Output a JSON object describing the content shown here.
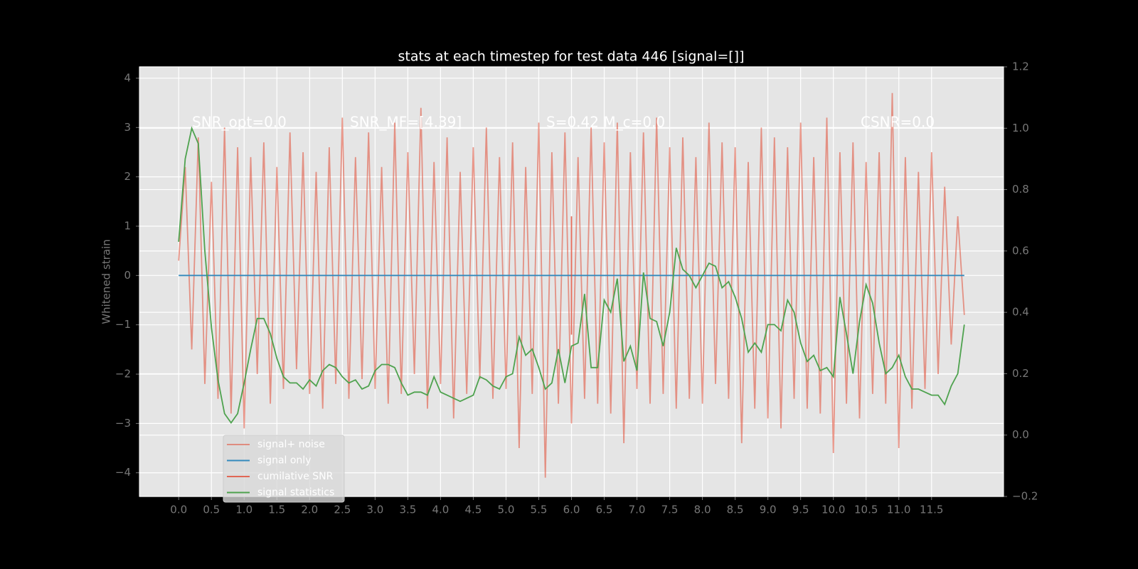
{
  "chart_data": {
    "type": "line",
    "title": "stats at each timestep for test data 446 [signal=[]]",
    "ylabel": "Whitened strain",
    "annotations": [
      "SNR_opt=0.0",
      "SNR_MF=[4.39]",
      "S=0.42   M_c=0.0",
      "CSNR=0.0"
    ],
    "x": [
      0,
      0.1,
      0.2,
      0.3,
      0.4,
      0.5,
      0.6,
      0.7,
      0.8,
      0.9,
      1.0,
      1.1,
      1.2,
      1.3,
      1.4,
      1.5,
      1.6,
      1.7,
      1.8,
      1.9,
      2.0,
      2.1,
      2.2,
      2.3,
      2.4,
      2.5,
      2.6,
      2.7,
      2.8,
      2.9,
      3.0,
      3.1,
      3.2,
      3.3,
      3.4,
      3.5,
      3.6,
      3.7,
      3.8,
      3.9,
      4.0,
      4.1,
      4.2,
      4.3,
      4.4,
      4.5,
      4.6,
      4.7,
      4.8,
      4.9,
      5.0,
      5.1,
      5.2,
      5.3,
      5.4,
      5.5,
      5.6,
      5.7,
      5.8,
      5.9,
      6.0,
      6.1,
      6.2,
      6.3,
      6.4,
      6.5,
      6.6,
      6.7,
      6.8,
      6.9,
      7.0,
      7.1,
      7.2,
      7.3,
      7.4,
      7.5,
      7.6,
      7.7,
      7.8,
      7.9,
      8.0,
      8.1,
      8.2,
      8.3,
      8.4,
      8.5,
      8.6,
      8.7,
      8.8,
      8.9,
      9.0,
      9.1,
      9.2,
      9.3,
      9.4,
      9.5,
      9.6,
      9.7,
      9.8,
      9.9,
      10.0,
      10.1,
      10.2,
      10.3,
      10.4,
      10.5,
      10.6,
      10.7,
      10.8,
      10.9,
      11.0,
      11.1,
      11.2,
      11.3,
      11.4,
      11.5,
      11.6,
      11.7,
      11.8,
      11.9,
      12.0
    ],
    "series": [
      {
        "name": "signal+ noise",
        "color": "#e24a33",
        "opacity": 0.55,
        "values": [
          0.3,
          2.2,
          -1.5,
          2.8,
          -2.2,
          1.9,
          -2.5,
          3.0,
          -2.8,
          2.6,
          -3.1,
          2.4,
          -2.0,
          2.7,
          -2.6,
          2.2,
          -2.3,
          2.9,
          -1.9,
          2.5,
          -2.4,
          2.1,
          -2.7,
          2.6,
          -2.2,
          3.2,
          -2.5,
          2.4,
          -2.1,
          2.9,
          -2.3,
          2.2,
          -2.6,
          3.1,
          -2.4,
          2.5,
          -2.0,
          3.4,
          -2.7,
          2.3,
          -2.2,
          2.8,
          -2.9,
          2.1,
          -2.4,
          2.6,
          -2.1,
          3.0,
          -2.5,
          2.4,
          -2.3,
          2.7,
          -3.5,
          2.2,
          -2.4,
          3.1,
          -4.1,
          2.5,
          -2.6,
          2.9,
          -3.0,
          2.4,
          -2.5,
          3.0,
          -2.6,
          2.7,
          -2.8,
          3.1,
          -3.4,
          2.5,
          -2.3,
          2.9,
          -2.6,
          3.2,
          -2.4,
          2.6,
          -2.7,
          2.8,
          -2.5,
          2.4,
          -2.6,
          3.1,
          -2.2,
          2.7,
          -2.5,
          2.6,
          -3.4,
          2.3,
          -2.7,
          3.0,
          -2.9,
          2.8,
          -3.1,
          2.6,
          -2.5,
          3.1,
          -2.7,
          2.4,
          -2.8,
          3.2,
          -3.6,
          2.5,
          -2.6,
          2.7,
          -2.9,
          2.3,
          -2.4,
          2.5,
          -2.6,
          3.7,
          -3.5,
          2.4,
          -2.7,
          2.1,
          -2.3,
          2.5,
          -2.0,
          1.8,
          -1.4,
          1.2,
          -0.8
        ]
      },
      {
        "name": "signal only",
        "color": "#348abd",
        "opacity": 1,
        "values": [
          0,
          0,
          0,
          0,
          0,
          0,
          0,
          0,
          0,
          0,
          0,
          0,
          0,
          0,
          0,
          0,
          0,
          0,
          0,
          0,
          0,
          0,
          0,
          0,
          0,
          0,
          0,
          0,
          0,
          0,
          0,
          0,
          0,
          0,
          0,
          0,
          0,
          0,
          0,
          0,
          0,
          0,
          0,
          0,
          0,
          0,
          0,
          0,
          0,
          0,
          0,
          0,
          0,
          0,
          0,
          0,
          0,
          0,
          0,
          0,
          0,
          0,
          0,
          0,
          0,
          0,
          0,
          0,
          0,
          0,
          0,
          0,
          0,
          0,
          0,
          0,
          0,
          0,
          0,
          0,
          0,
          0,
          0,
          0,
          0,
          0,
          0,
          0,
          0,
          0,
          0,
          0,
          0,
          0,
          0,
          0,
          0,
          0,
          0,
          0,
          0,
          0,
          0,
          0,
          0,
          0,
          0,
          0,
          0,
          0,
          0,
          0,
          0,
          0,
          0,
          0,
          0,
          0,
          0,
          0,
          0
        ]
      },
      {
        "name": "cumilative SNR",
        "color": "#e24a33",
        "opacity": 0.8,
        "x": [
          6.0,
          6.0
        ],
        "values": [
          1.2,
          -1.2
        ]
      },
      {
        "name": "signal statistics",
        "color": "#4ea24e",
        "opacity": 1,
        "axis": "y2",
        "values": [
          0.63,
          0.9,
          1.0,
          0.95,
          0.6,
          0.35,
          0.18,
          0.07,
          0.04,
          0.07,
          0.17,
          0.28,
          0.38,
          0.38,
          0.33,
          0.25,
          0.19,
          0.17,
          0.17,
          0.15,
          0.18,
          0.16,
          0.21,
          0.23,
          0.22,
          0.19,
          0.17,
          0.18,
          0.15,
          0.16,
          0.21,
          0.23,
          0.23,
          0.22,
          0.17,
          0.13,
          0.14,
          0.14,
          0.13,
          0.19,
          0.14,
          0.13,
          0.12,
          0.11,
          0.12,
          0.13,
          0.19,
          0.18,
          0.16,
          0.15,
          0.19,
          0.2,
          0.32,
          0.26,
          0.28,
          0.22,
          0.15,
          0.17,
          0.28,
          0.17,
          0.29,
          0.3,
          0.46,
          0.22,
          0.22,
          0.44,
          0.4,
          0.51,
          0.24,
          0.29,
          0.21,
          0.53,
          0.38,
          0.37,
          0.29,
          0.4,
          0.61,
          0.54,
          0.52,
          0.48,
          0.52,
          0.56,
          0.55,
          0.48,
          0.5,
          0.45,
          0.38,
          0.27,
          0.3,
          0.27,
          0.36,
          0.36,
          0.34,
          0.44,
          0.4,
          0.3,
          0.24,
          0.26,
          0.21,
          0.22,
          0.19,
          0.45,
          0.33,
          0.2,
          0.37,
          0.49,
          0.43,
          0.3,
          0.2,
          0.22,
          0.26,
          0.19,
          0.15,
          0.15,
          0.14,
          0.13,
          0.13,
          0.1,
          0.16,
          0.2,
          0.36
        ]
      }
    ],
    "xlim": [
      -0.6,
      12.6
    ],
    "xticks": [
      {
        "value": 0,
        "label": "0.0"
      },
      {
        "value": 0.5,
        "label": "0.5"
      },
      {
        "value": 1,
        "label": "1.0"
      },
      {
        "value": 1.5,
        "label": "1.5"
      },
      {
        "value": 2,
        "label": "2.0"
      },
      {
        "value": 2.5,
        "label": "2.5"
      },
      {
        "value": 3,
        "label": "3.0"
      },
      {
        "value": 3.5,
        "label": "3.5"
      },
      {
        "value": 4,
        "label": "4.0"
      },
      {
        "value": 4.5,
        "label": "4.5"
      },
      {
        "value": 5,
        "label": "5.0"
      },
      {
        "value": 5.5,
        "label": "5.5"
      },
      {
        "value": 6,
        "label": "6.0"
      },
      {
        "value": 6.5,
        "label": "6.5"
      },
      {
        "value": 7,
        "label": "7.0"
      },
      {
        "value": 7.5,
        "label": "7.5"
      },
      {
        "value": 8,
        "label": "8.0"
      },
      {
        "value": 8.5,
        "label": "8.5"
      },
      {
        "value": 9,
        "label": "9.0"
      },
      {
        "value": 9.5,
        "label": "9.5"
      },
      {
        "value": 10,
        "label": "10.0"
      },
      {
        "value": 10.5,
        "label": "10.5"
      },
      {
        "value": 11,
        "label": "11.0"
      },
      {
        "value": 11.5,
        "label": "11.5"
      }
    ],
    "ylim": [
      -4.48,
      4.23
    ],
    "yticks": [
      {
        "value": -4,
        "label": "−4"
      },
      {
        "value": -3,
        "label": "−3"
      },
      {
        "value": -2,
        "label": "−2"
      },
      {
        "value": -1,
        "label": "−1"
      },
      0,
      1,
      2,
      3,
      4
    ],
    "y2lim": [
      -0.2,
      1.2
    ],
    "y2ticks": [
      {
        "value": -0.2,
        "label": "−0.2"
      },
      {
        "value": 0,
        "label": "0.0"
      },
      {
        "value": 0.2,
        "label": "0.2"
      },
      {
        "value": 0.4,
        "label": "0.4"
      },
      {
        "value": 0.6,
        "label": "0.6"
      },
      {
        "value": 0.8,
        "label": "0.8"
      },
      {
        "value": 1.0,
        "label": "1.0"
      },
      {
        "value": 1.2,
        "label": "1.2"
      }
    ],
    "grid": true,
    "legend": "lower left"
  }
}
